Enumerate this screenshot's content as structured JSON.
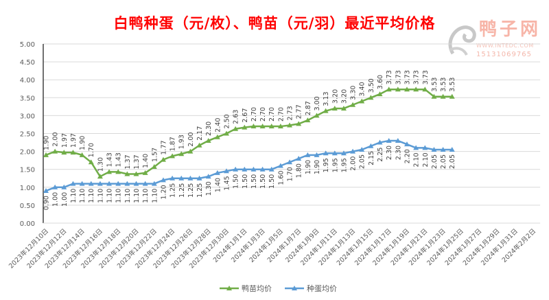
{
  "watermark": {
    "name": "鸭子网",
    "url": "WWW.INTEDC.COM",
    "phone": "15131069765"
  },
  "chart_data": {
    "type": "line",
    "title": "白鸭种蛋（元/枚）、鸭苗（元/羽）最近平均价格",
    "xlabel": "",
    "ylabel": "",
    "ylim": [
      0,
      5
    ],
    "yticks": [
      "0.00",
      "0.50",
      "1.00",
      "1.50",
      "2.00",
      "2.50",
      "3.00",
      "3.50",
      "4.00",
      "4.50",
      "5.00"
    ],
    "grid": true,
    "legend_position": "bottom",
    "x_start": "2023-12-10",
    "x_days_total": 55,
    "x_tick_labels": [
      "2023年12月10日",
      "2023年12月12日",
      "2023年12月14日",
      "2023年12月16日",
      "2023年12月18日",
      "2023年12月20日",
      "2023年12月22日",
      "2023年12月24日",
      "2023年12月26日",
      "2023年12月28日",
      "2023年12月30日",
      "2024年1月1日",
      "2024年1月3日",
      "2024年1月5日",
      "2024年1月7日",
      "2024年1月9日",
      "2024年1月11日",
      "2024年1月13日",
      "2024年1月15日",
      "2024年1月17日",
      "2024年1月19日",
      "2024年1月21日",
      "2024年1月23日",
      "2024年1月25日",
      "2024年1月27日",
      "2024年1月29日",
      "2024年1月31日",
      "2024年2月2日"
    ],
    "series": [
      {
        "name": "鸭苗均价",
        "color": "#70ad47",
        "values": [
          1.9,
          2.0,
          1.97,
          1.97,
          1.9,
          1.7,
          1.3,
          1.43,
          1.43,
          1.37,
          1.37,
          1.4,
          1.57,
          1.77,
          1.87,
          1.93,
          2.0,
          2.17,
          2.3,
          2.4,
          2.5,
          2.63,
          2.67,
          2.7,
          2.7,
          2.7,
          2.7,
          2.73,
          2.77,
          2.87,
          3.0,
          3.13,
          3.2,
          3.2,
          3.3,
          3.4,
          3.5,
          3.6,
          3.73,
          3.73,
          3.73,
          3.73,
          3.73,
          3.53,
          3.53,
          3.53
        ]
      },
      {
        "name": "种蛋均价",
        "color": "#5b9bd5",
        "values": [
          0.9,
          1.0,
          1.0,
          1.1,
          1.1,
          1.1,
          1.1,
          1.1,
          1.1,
          1.1,
          1.1,
          1.1,
          1.1,
          1.2,
          1.25,
          1.25,
          1.25,
          1.25,
          1.3,
          1.4,
          1.45,
          1.5,
          1.5,
          1.5,
          1.5,
          1.5,
          1.6,
          1.7,
          1.8,
          1.9,
          1.9,
          1.95,
          1.95,
          1.95,
          2.0,
          2.05,
          2.15,
          2.25,
          2.3,
          2.3,
          2.2,
          2.1,
          2.1,
          2.05,
          2.05,
          2.05
        ]
      }
    ]
  }
}
